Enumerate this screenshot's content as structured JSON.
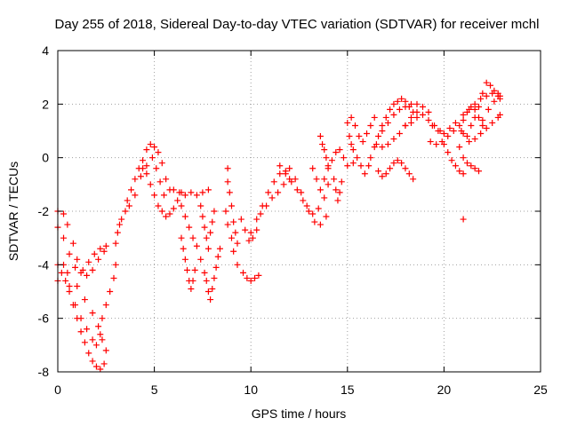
{
  "chart_data": {
    "type": "scatter",
    "title": "Day 255 of 2018, Sidereal Day-to-day VTEC variation (SDTVAR) for receiver mchl",
    "xlabel": "GPS time / hours",
    "ylabel": "SDTVAR / TECUs",
    "xlim": [
      0,
      25
    ],
    "ylim": [
      -8,
      4
    ],
    "xticks": [
      0,
      5,
      10,
      15,
      20,
      25
    ],
    "yticks": [
      -8,
      -6,
      -4,
      -2,
      0,
      2,
      4
    ],
    "grid": true,
    "marker": "+",
    "color": "#ff0000",
    "series": [
      {
        "points": [
          [
            0.0,
            -2.0
          ],
          [
            0.3,
            -2.1
          ],
          [
            0.5,
            -2.5
          ],
          [
            0.8,
            -3.2
          ],
          [
            1.0,
            -3.8
          ],
          [
            1.3,
            -4.2
          ],
          [
            1.6,
            -3.9
          ],
          [
            1.9,
            -3.6
          ],
          [
            2.2,
            -3.4
          ],
          [
            2.5,
            -3.3
          ],
          [
            0.0,
            -2.6
          ],
          [
            0.3,
            -3.0
          ],
          [
            0.6,
            -3.6
          ],
          [
            0.9,
            -4.1
          ],
          [
            1.2,
            -4.3
          ],
          [
            1.5,
            -4.4
          ],
          [
            1.8,
            -4.2
          ],
          [
            2.1,
            -3.8
          ],
          [
            2.4,
            -3.5
          ],
          [
            0.0,
            -4.0
          ],
          [
            0.2,
            -4.3
          ],
          [
            0.4,
            -4.6
          ],
          [
            0.6,
            -5.0
          ],
          [
            0.8,
            -5.5
          ],
          [
            1.0,
            -6.0
          ],
          [
            1.2,
            -6.5
          ],
          [
            1.4,
            -6.9
          ],
          [
            1.6,
            -7.3
          ],
          [
            1.8,
            -7.6
          ],
          [
            2.0,
            -7.8
          ],
          [
            2.2,
            -7.9
          ],
          [
            2.4,
            -7.7
          ],
          [
            2.5,
            -7.2
          ],
          [
            0.3,
            -4.0
          ],
          [
            0.6,
            -4.8
          ],
          [
            0.9,
            -5.5
          ],
          [
            1.2,
            -6.0
          ],
          [
            1.5,
            -6.4
          ],
          [
            1.8,
            -6.8
          ],
          [
            2.0,
            -7.0
          ],
          [
            2.2,
            -6.6
          ],
          [
            2.3,
            -6.0
          ],
          [
            2.5,
            -5.5
          ],
          [
            2.7,
            -5.0
          ],
          [
            2.9,
            -4.5
          ],
          [
            3.0,
            -4.0
          ],
          [
            3.0,
            -3.2
          ],
          [
            3.1,
            -2.8
          ],
          [
            3.2,
            -2.5
          ],
          [
            0.0,
            -4.6
          ],
          [
            0.5,
            -4.3
          ],
          [
            1.0,
            -4.8
          ],
          [
            1.4,
            -5.3
          ],
          [
            1.8,
            -5.8
          ],
          [
            2.1,
            -6.3
          ],
          [
            2.3,
            -6.8
          ],
          [
            3.3,
            -2.3
          ],
          [
            3.5,
            -2.0
          ],
          [
            3.6,
            -1.6
          ],
          [
            3.8,
            -1.2
          ],
          [
            4.0,
            -0.8
          ],
          [
            4.2,
            -0.4
          ],
          [
            4.4,
            -0.1
          ],
          [
            4.6,
            0.3
          ],
          [
            4.8,
            0.5
          ],
          [
            5.0,
            0.4
          ],
          [
            5.2,
            0.2
          ],
          [
            5.4,
            -0.2
          ],
          [
            5.6,
            -0.8
          ],
          [
            5.8,
            -1.2
          ],
          [
            3.7,
            -1.8
          ],
          [
            4.0,
            -1.4
          ],
          [
            4.3,
            -0.7
          ],
          [
            4.6,
            -0.3
          ],
          [
            4.9,
            0.0
          ],
          [
            5.1,
            -0.4
          ],
          [
            5.3,
            -0.9
          ],
          [
            5.5,
            -1.4
          ],
          [
            4.4,
            -0.4
          ],
          [
            4.6,
            -0.6
          ],
          [
            4.8,
            -1.0
          ],
          [
            5.0,
            -1.4
          ],
          [
            5.2,
            -1.8
          ],
          [
            5.4,
            -2.0
          ],
          [
            5.6,
            -2.2
          ],
          [
            5.8,
            -2.1
          ],
          [
            6.0,
            -1.9
          ],
          [
            6.2,
            -1.6
          ],
          [
            6.4,
            -1.3
          ],
          [
            6.0,
            -1.2
          ],
          [
            6.3,
            -1.3
          ],
          [
            6.6,
            -1.4
          ],
          [
            6.9,
            -1.3
          ],
          [
            7.2,
            -1.4
          ],
          [
            7.5,
            -1.3
          ],
          [
            7.8,
            -1.2
          ],
          [
            6.4,
            -1.8
          ],
          [
            6.6,
            -2.2
          ],
          [
            6.8,
            -2.6
          ],
          [
            7.0,
            -3.0
          ],
          [
            7.2,
            -3.3
          ],
          [
            7.4,
            -3.8
          ],
          [
            6.4,
            -3.0
          ],
          [
            6.5,
            -3.4
          ],
          [
            6.6,
            -3.8
          ],
          [
            6.7,
            -4.2
          ],
          [
            6.8,
            -4.6
          ],
          [
            6.9,
            -4.9
          ],
          [
            7.0,
            -4.6
          ],
          [
            7.1,
            -4.2
          ],
          [
            7.4,
            -1.8
          ],
          [
            7.5,
            -2.2
          ],
          [
            7.6,
            -2.6
          ],
          [
            7.7,
            -3.0
          ],
          [
            7.8,
            -3.4
          ],
          [
            7.9,
            -2.8
          ],
          [
            8.0,
            -2.4
          ],
          [
            8.1,
            -2.0
          ],
          [
            7.6,
            -4.3
          ],
          [
            7.7,
            -4.6
          ],
          [
            7.8,
            -5.0
          ],
          [
            7.9,
            -5.3
          ],
          [
            8.0,
            -4.9
          ],
          [
            8.1,
            -4.5
          ],
          [
            8.2,
            -4.1
          ],
          [
            8.3,
            -3.7
          ],
          [
            8.4,
            -3.4
          ],
          [
            8.8,
            -0.4
          ],
          [
            8.8,
            -0.9
          ],
          [
            8.9,
            -1.3
          ],
          [
            9.0,
            -1.8
          ],
          [
            9.1,
            -2.4
          ],
          [
            9.2,
            -2.8
          ],
          [
            9.3,
            -3.2
          ],
          [
            8.7,
            -2.0
          ],
          [
            8.8,
            -2.5
          ],
          [
            9.0,
            -3.0
          ],
          [
            9.1,
            -3.5
          ],
          [
            9.3,
            -4.0
          ],
          [
            9.5,
            -2.3
          ],
          [
            9.7,
            -2.7
          ],
          [
            9.9,
            -3.1
          ],
          [
            10.1,
            -3.0
          ],
          [
            10.3,
            -2.7
          ],
          [
            9.6,
            -4.3
          ],
          [
            9.8,
            -4.5
          ],
          [
            10.0,
            -4.6
          ],
          [
            10.2,
            -4.5
          ],
          [
            10.4,
            -4.4
          ],
          [
            10.0,
            -2.8
          ],
          [
            10.3,
            -2.3
          ],
          [
            10.6,
            -1.8
          ],
          [
            10.9,
            -1.3
          ],
          [
            11.2,
            -0.9
          ],
          [
            11.5,
            -0.6
          ],
          [
            11.8,
            -0.5
          ],
          [
            10.5,
            -2.1
          ],
          [
            10.8,
            -1.8
          ],
          [
            11.1,
            -1.5
          ],
          [
            11.4,
            -1.3
          ],
          [
            11.7,
            -1.0
          ],
          [
            12.0,
            -0.8
          ],
          [
            11.5,
            -0.3
          ],
          [
            11.8,
            -0.6
          ],
          [
            12.1,
            -0.9
          ],
          [
            12.4,
            -1.2
          ],
          [
            12.7,
            -1.6
          ],
          [
            13.0,
            -2.0
          ],
          [
            13.3,
            -2.4
          ],
          [
            13.6,
            -2.5
          ],
          [
            13.9,
            -2.2
          ],
          [
            12.0,
            -0.4
          ],
          [
            12.3,
            -0.8
          ],
          [
            12.6,
            -1.3
          ],
          [
            12.9,
            -1.8
          ],
          [
            13.2,
            -2.1
          ],
          [
            13.5,
            -1.9
          ],
          [
            13.8,
            -1.5
          ],
          [
            14.0,
            -1.0
          ],
          [
            13.2,
            -0.4
          ],
          [
            13.4,
            -0.8
          ],
          [
            13.6,
            -1.2
          ],
          [
            13.8,
            -0.8
          ],
          [
            14.0,
            -0.4
          ],
          [
            14.2,
            -0.1
          ],
          [
            14.4,
            0.2
          ],
          [
            13.6,
            0.8
          ],
          [
            13.7,
            0.5
          ],
          [
            13.8,
            0.3
          ],
          [
            13.9,
            0.0
          ],
          [
            14.0,
            -0.3
          ],
          [
            14.3,
            -0.8
          ],
          [
            14.4,
            -1.2
          ],
          [
            14.5,
            -1.6
          ],
          [
            14.6,
            -1.3
          ],
          [
            14.7,
            -0.9
          ],
          [
            14.6,
            0.3
          ],
          [
            14.8,
            0.0
          ],
          [
            15.0,
            -0.3
          ],
          [
            15.2,
            1.5
          ],
          [
            15.4,
            1.2
          ],
          [
            15.6,
            0.8
          ],
          [
            15.8,
            0.6
          ],
          [
            16.0,
            0.9
          ],
          [
            16.2,
            1.2
          ],
          [
            16.4,
            1.5
          ],
          [
            15.0,
            1.3
          ],
          [
            15.1,
            0.8
          ],
          [
            15.2,
            0.5
          ],
          [
            15.3,
            0.3
          ],
          [
            15.3,
            -0.2
          ],
          [
            15.5,
            0.0
          ],
          [
            15.7,
            -0.3
          ],
          [
            15.9,
            -0.6
          ],
          [
            16.1,
            -0.3
          ],
          [
            16.2,
            0.0
          ],
          [
            16.4,
            0.4
          ],
          [
            16.6,
            0.8
          ],
          [
            16.8,
            1.2
          ],
          [
            17.0,
            1.5
          ],
          [
            17.2,
            1.8
          ],
          [
            17.4,
            2.0
          ],
          [
            17.6,
            2.1
          ],
          [
            17.8,
            2.2
          ],
          [
            18.0,
            2.1
          ],
          [
            18.2,
            1.9
          ],
          [
            18.4,
            1.7
          ],
          [
            16.6,
            -0.5
          ],
          [
            16.8,
            -0.7
          ],
          [
            17.0,
            -0.6
          ],
          [
            17.2,
            -0.4
          ],
          [
            17.4,
            -0.2
          ],
          [
            17.6,
            -0.1
          ],
          [
            17.8,
            -0.2
          ],
          [
            18.0,
            -0.4
          ],
          [
            18.2,
            -0.6
          ],
          [
            18.4,
            -0.8
          ],
          [
            16.5,
            0.5
          ],
          [
            16.8,
            0.4
          ],
          [
            17.1,
            0.5
          ],
          [
            17.4,
            0.7
          ],
          [
            17.7,
            0.9
          ],
          [
            18.0,
            1.2
          ],
          [
            18.3,
            1.5
          ],
          [
            18.6,
            1.7
          ],
          [
            16.8,
            1.0
          ],
          [
            17.1,
            1.3
          ],
          [
            17.4,
            1.6
          ],
          [
            17.7,
            1.8
          ],
          [
            18.0,
            1.9
          ],
          [
            18.3,
            2.0
          ],
          [
            18.6,
            2.0
          ],
          [
            18.9,
            1.9
          ],
          [
            19.2,
            1.7
          ],
          [
            18.0,
            1.2
          ],
          [
            18.3,
            1.3
          ],
          [
            18.6,
            1.5
          ],
          [
            18.9,
            1.6
          ],
          [
            19.2,
            1.4
          ],
          [
            19.5,
            1.2
          ],
          [
            19.8,
            1.0
          ],
          [
            19.3,
            0.6
          ],
          [
            19.6,
            0.5
          ],
          [
            19.9,
            0.6
          ],
          [
            20.2,
            0.8
          ],
          [
            20.5,
            1.0
          ],
          [
            19.4,
            1.2
          ],
          [
            19.7,
            1.0
          ],
          [
            20.0,
            0.9
          ],
          [
            20.3,
            1.1
          ],
          [
            20.6,
            1.3
          ],
          [
            20.9,
            1.0
          ],
          [
            21.2,
            0.8
          ],
          [
            20.0,
            0.5
          ],
          [
            20.2,
            0.2
          ],
          [
            20.4,
            -0.1
          ],
          [
            20.6,
            -0.3
          ],
          [
            20.8,
            -0.5
          ],
          [
            21.0,
            -0.6
          ],
          [
            20.8,
            0.4
          ],
          [
            21.0,
            0.0
          ],
          [
            21.2,
            -0.2
          ],
          [
            21.4,
            -0.3
          ],
          [
            21.6,
            -0.4
          ],
          [
            21.8,
            -0.5
          ],
          [
            21.4,
            1.2
          ],
          [
            21.6,
            1.5
          ],
          [
            21.8,
            1.9
          ],
          [
            22.0,
            2.4
          ],
          [
            22.2,
            2.8
          ],
          [
            22.4,
            2.7
          ],
          [
            22.6,
            2.5
          ],
          [
            22.8,
            2.4
          ],
          [
            22.9,
            2.3
          ],
          [
            21.0,
            1.6
          ],
          [
            21.3,
            1.8
          ],
          [
            21.6,
            2.0
          ],
          [
            21.9,
            2.2
          ],
          [
            22.2,
            2.3
          ],
          [
            22.5,
            2.4
          ],
          [
            22.8,
            2.3
          ],
          [
            20.8,
            1.2
          ],
          [
            21.0,
            1.4
          ],
          [
            21.2,
            1.7
          ],
          [
            21.4,
            1.9
          ],
          [
            21.6,
            1.8
          ],
          [
            21.8,
            1.5
          ],
          [
            22.0,
            1.2
          ],
          [
            21.0,
            0.9
          ],
          [
            21.3,
            0.6
          ],
          [
            21.6,
            0.7
          ],
          [
            21.9,
            0.9
          ],
          [
            22.2,
            1.1
          ],
          [
            22.5,
            1.3
          ],
          [
            22.8,
            1.5
          ],
          [
            22.9,
            1.6
          ],
          [
            22.0,
            1.4
          ],
          [
            22.3,
            1.8
          ],
          [
            22.6,
            2.1
          ],
          [
            22.9,
            2.2
          ],
          [
            21.0,
            -2.3
          ]
        ]
      }
    ]
  }
}
